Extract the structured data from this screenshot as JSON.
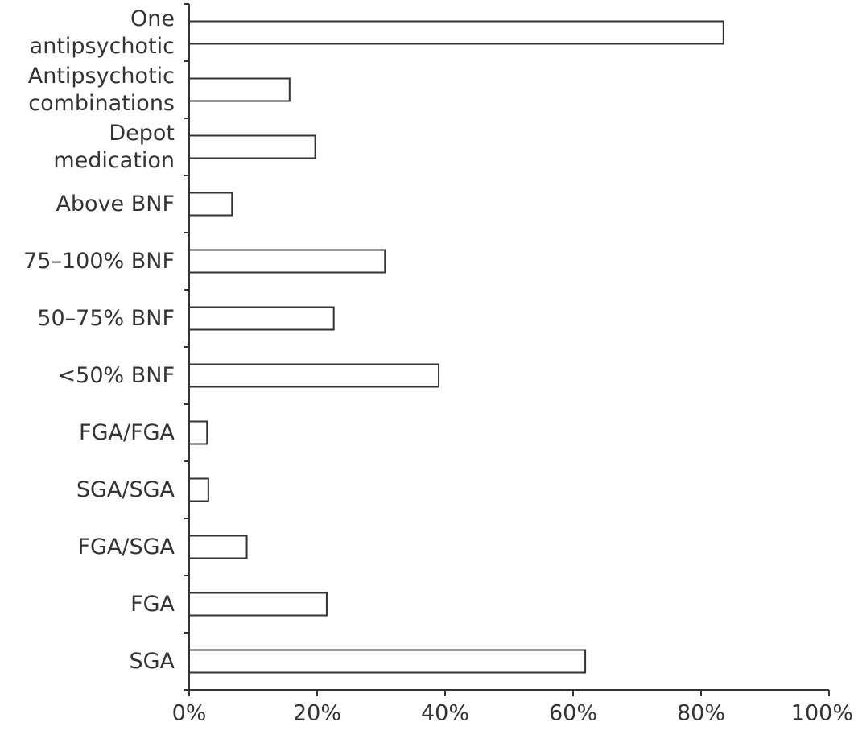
{
  "chart_data": {
    "type": "bar",
    "orientation": "horizontal",
    "categories": [
      "One\nantipsychotic",
      "Antipsychotic\ncombinations",
      "Depot\nmedication",
      "Above BNF",
      "75–100% BNF",
      "50–75% BNF",
      "<50% BNF",
      "FGA/FGA",
      "SGA/SGA",
      "FGA/SGA",
      "FGA",
      "SGA"
    ],
    "values": [
      83.5,
      15.7,
      19.7,
      6.7,
      30.6,
      22.6,
      39,
      2.8,
      3,
      9,
      21.5,
      61.9
    ],
    "color": "#ffffff",
    "xlim": [
      0,
      100
    ],
    "xticks": [
      {
        "value": 0,
        "label": "0%"
      },
      {
        "value": 20,
        "label": "20%"
      },
      {
        "value": 40,
        "label": "40%"
      },
      {
        "value": 60,
        "label": "60%"
      },
      {
        "value": 80,
        "label": "80%"
      },
      {
        "value": 100,
        "label": "100%"
      }
    ],
    "grid": false
  }
}
